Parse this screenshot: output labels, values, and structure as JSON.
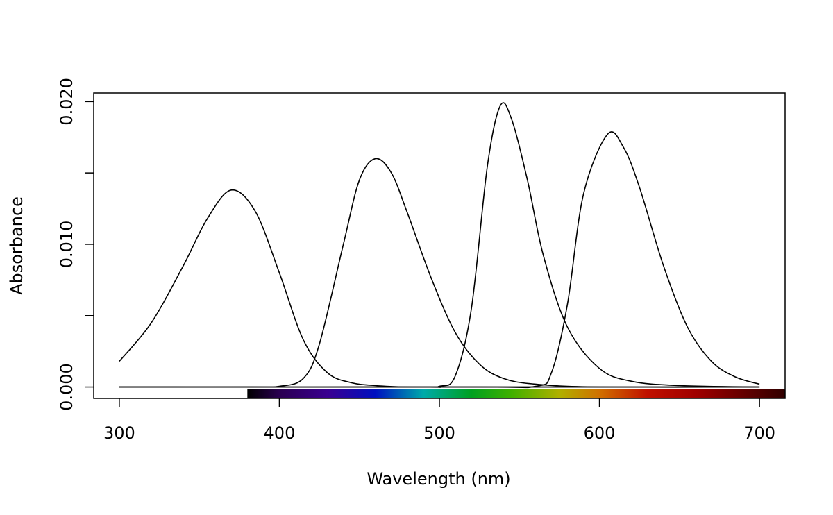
{
  "chart_data": {
    "type": "line",
    "title": "",
    "xlabel": "Wavelength (nm)",
    "ylabel": "Absorbance",
    "xlim": [
      284,
      716
    ],
    "ylim": [
      -0.0008,
      0.0206
    ],
    "x_ticks": [
      300,
      400,
      500,
      600,
      700
    ],
    "x_tick_labels": [
      "300",
      "400",
      "500",
      "600",
      "700"
    ],
    "y_ticks": [
      0,
      0.005,
      0.01,
      0.015,
      0.02
    ],
    "y_tick_labels": [
      "0.000",
      "",
      "0.010",
      "",
      "0.020"
    ],
    "grid": false,
    "legend": "none",
    "series": [
      {
        "x": [
          300,
          320,
          340,
          355,
          370,
          385,
          400,
          415,
          430,
          445,
          460,
          480,
          500,
          550,
          700
        ],
        "y": [
          0.0018,
          0.0045,
          0.0085,
          0.0118,
          0.0138,
          0.0123,
          0.008,
          0.0033,
          0.001,
          0.0003,
          0.0001,
          0.0,
          0.0,
          0.0,
          0.0
        ]
      },
      {
        "x": [
          300,
          380,
          400,
          415,
          425,
          440,
          450,
          460,
          470,
          480,
          495,
          510,
          525,
          540,
          560,
          600,
          700
        ],
        "y": [
          0.0,
          0.0,
          5e-05,
          0.0006,
          0.003,
          0.01,
          0.0145,
          0.016,
          0.015,
          0.0122,
          0.0076,
          0.0038,
          0.0016,
          0.0006,
          0.0002,
          0.0,
          0.0
        ]
      },
      {
        "x": [
          300,
          480,
          500,
          510,
          520,
          530,
          538,
          545,
          555,
          565,
          580,
          600,
          620,
          650,
          700
        ],
        "y": [
          0.0,
          0.0,
          5e-05,
          0.0008,
          0.0055,
          0.0155,
          0.0197,
          0.0188,
          0.0145,
          0.0092,
          0.0042,
          0.0013,
          0.0004,
          0.0001,
          0.0
        ],
        "x_extra_note": ""
      },
      {
        "x": [
          300,
          520,
          560,
          570,
          580,
          590,
          605,
          615,
          625,
          640,
          655,
          670,
          685,
          700
        ],
        "y": [
          0.0,
          0.0,
          5e-05,
          0.001,
          0.0058,
          0.0135,
          0.0177,
          0.0168,
          0.014,
          0.0085,
          0.0042,
          0.0018,
          0.0007,
          0.0002
        ]
      }
    ],
    "baseline": {
      "x": [
        300,
        700
      ],
      "y": [
        0,
        0
      ]
    },
    "spectrum_bar": {
      "x_start": 380,
      "x_end": 716,
      "stops": [
        {
          "nm": 380,
          "color": "#000000"
        },
        {
          "nm": 400,
          "color": "#2a0050"
        },
        {
          "nm": 430,
          "color": "#3a0090"
        },
        {
          "nm": 460,
          "color": "#0010c0"
        },
        {
          "nm": 490,
          "color": "#00aaaa"
        },
        {
          "nm": 520,
          "color": "#00a020"
        },
        {
          "nm": 545,
          "color": "#40b000"
        },
        {
          "nm": 575,
          "color": "#b0b000"
        },
        {
          "nm": 600,
          "color": "#d07000"
        },
        {
          "nm": 630,
          "color": "#c01000"
        },
        {
          "nm": 660,
          "color": "#a00000"
        },
        {
          "nm": 716,
          "color": "#300000"
        }
      ]
    }
  }
}
